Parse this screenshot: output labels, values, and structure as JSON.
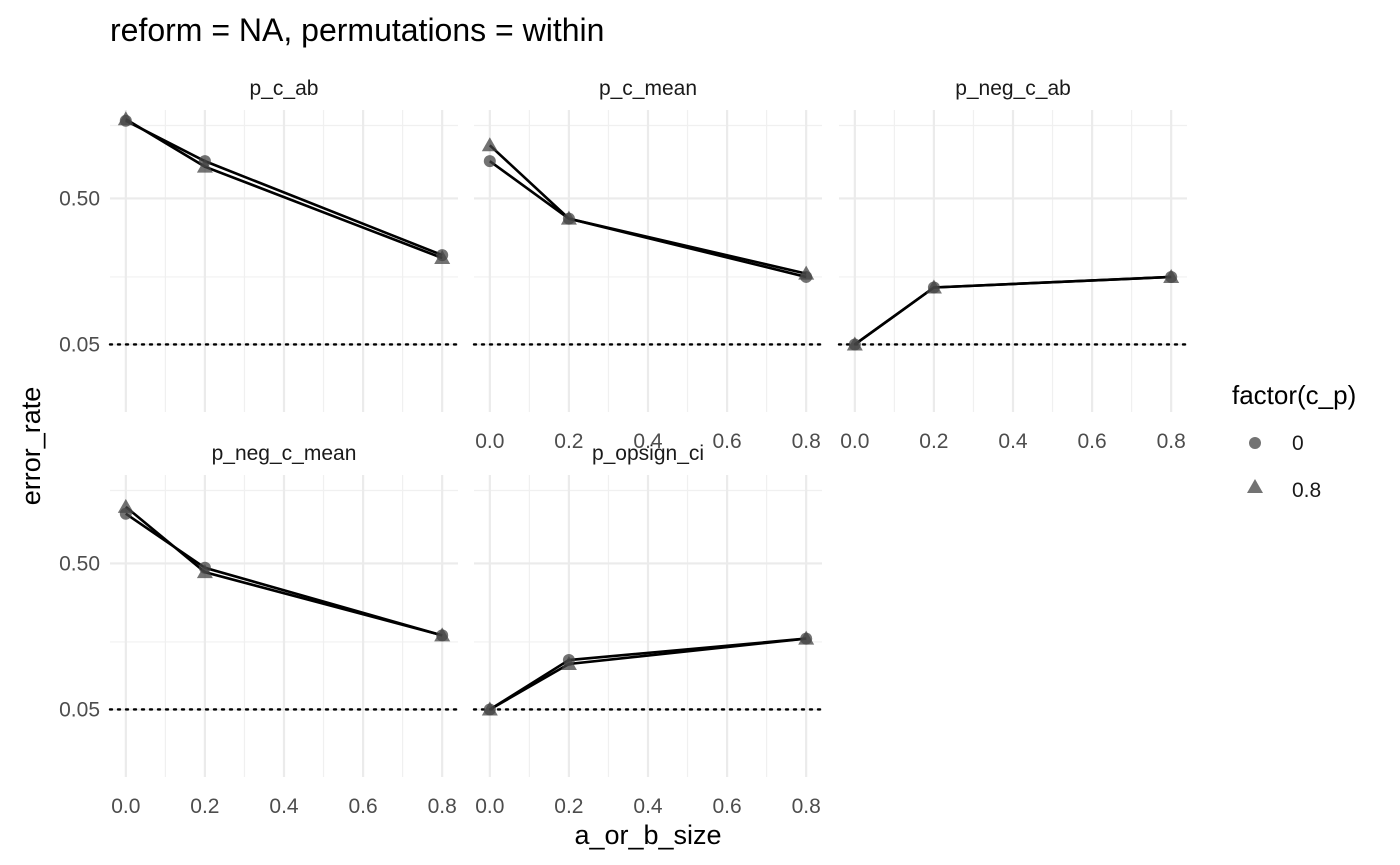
{
  "chart_data": {
    "type": "line",
    "title": "reform = NA, permutations = within",
    "xlabel": "a_or_b_size",
    "ylabel": "error_rate",
    "x_ticks": [
      "0.0",
      "0.2",
      "0.4",
      "0.6",
      "0.8"
    ],
    "y_ticks": [
      "0.05",
      "0.50"
    ],
    "y_scale": "sqrt",
    "xlim": [
      -0.04,
      0.84
    ],
    "ylim": [
      0.0,
      1.0
    ],
    "grid": true,
    "reference_line": {
      "y": 0.05,
      "style": "dotted"
    },
    "legend": {
      "title": "factor(c_p)",
      "position": "right",
      "entries": [
        {
          "label": "0",
          "shape": "circle"
        },
        {
          "label": "0.8",
          "shape": "triangle"
        }
      ]
    },
    "panels": [
      {
        "name": "p_c_ab",
        "series": [
          {
            "name": "0",
            "x": [
              0,
              0.2,
              0.8
            ],
            "y": [
              0.93,
              0.69,
              0.27
            ]
          },
          {
            "name": "0.8",
            "x": [
              0,
              0.2,
              0.8
            ],
            "y": [
              0.94,
              0.66,
              0.26
            ]
          }
        ]
      },
      {
        "name": "p_c_mean",
        "series": [
          {
            "name": "0",
            "x": [
              0,
              0.2,
              0.8
            ],
            "y": [
              0.69,
              0.41,
              0.2
            ]
          },
          {
            "name": "0.8",
            "x": [
              0,
              0.2,
              0.8
            ],
            "y": [
              0.78,
              0.41,
              0.21
            ]
          }
        ]
      },
      {
        "name": "p_neg_c_ab",
        "series": [
          {
            "name": "0",
            "x": [
              0,
              0.2,
              0.8
            ],
            "y": [
              0.05,
              0.17,
              0.2
            ]
          },
          {
            "name": "0.8",
            "x": [
              0,
              0.2,
              0.8
            ],
            "y": [
              0.05,
              0.17,
              0.2
            ]
          }
        ]
      },
      {
        "name": "p_neg_c_mean",
        "series": [
          {
            "name": "0",
            "x": [
              0,
              0.2,
              0.8
            ],
            "y": [
              0.76,
              0.48,
              0.22
            ]
          },
          {
            "name": "0.8",
            "x": [
              0,
              0.2,
              0.8
            ],
            "y": [
              0.8,
              0.46,
              0.22
            ]
          }
        ]
      },
      {
        "name": "p_opsign_ci",
        "series": [
          {
            "name": "0",
            "x": [
              0,
              0.2,
              0.8
            ],
            "y": [
              0.05,
              0.15,
              0.21
            ]
          },
          {
            "name": "0.8",
            "x": [
              0,
              0.2,
              0.8
            ],
            "y": [
              0.05,
              0.14,
              0.21
            ]
          }
        ]
      }
    ]
  }
}
